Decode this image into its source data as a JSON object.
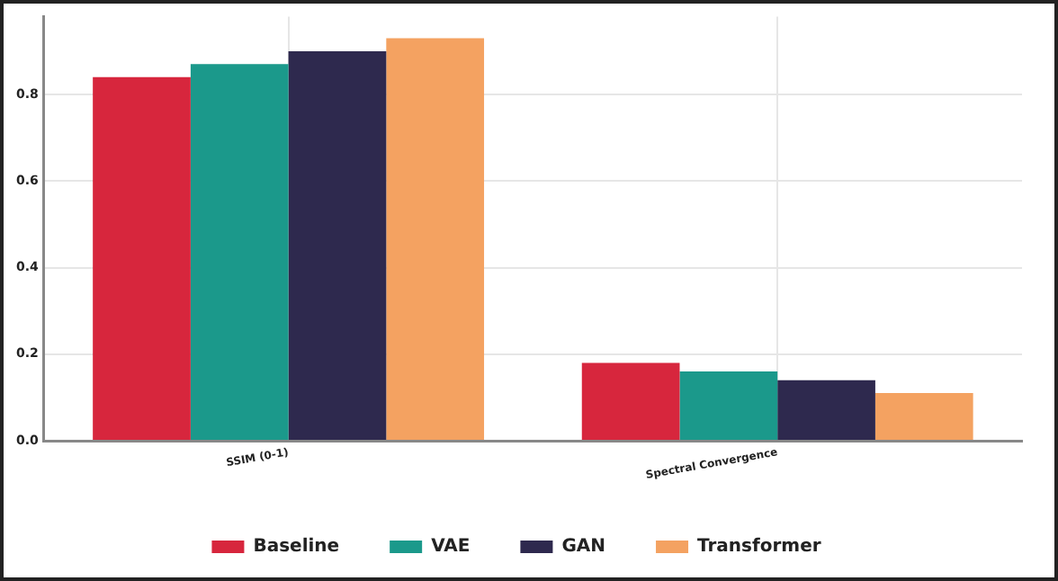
{
  "chart_data": {
    "type": "bar",
    "categories": [
      "SSIM (0-1)",
      "Spectral Convergence"
    ],
    "series": [
      {
        "name": "Baseline",
        "color": "#d7263d",
        "values": [
          0.84,
          0.18
        ]
      },
      {
        "name": "VAE",
        "color": "#1b998b",
        "values": [
          0.87,
          0.16
        ]
      },
      {
        "name": "GAN",
        "color": "#2e294e",
        "values": [
          0.9,
          0.14
        ]
      },
      {
        "name": "Transformer",
        "color": "#f4a261",
        "values": [
          0.93,
          0.11
        ]
      }
    ],
    "ylim": [
      0,
      0.98
    ],
    "yticks": [
      {
        "value": 0,
        "label": "0.0"
      },
      {
        "value": 0.2,
        "label": "0.2"
      },
      {
        "value": 0.4,
        "label": "0.4"
      },
      {
        "value": 0.6,
        "label": "0.6"
      },
      {
        "value": 0.8,
        "label": "0.8"
      }
    ],
    "grid": true,
    "legend": "bottom"
  }
}
